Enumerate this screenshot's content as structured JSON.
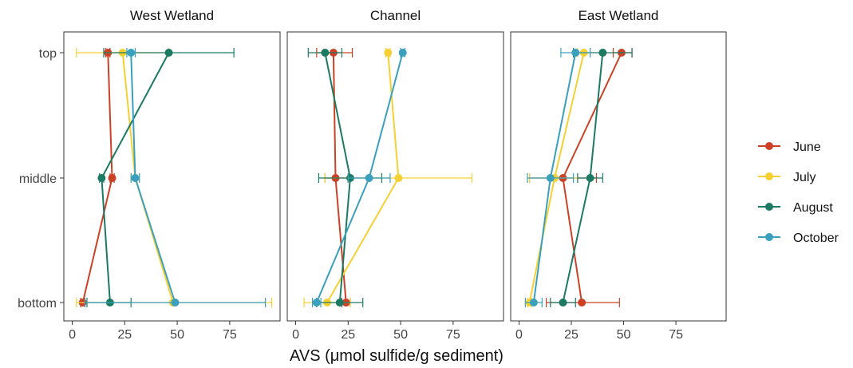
{
  "chart_data": {
    "type": "line",
    "xlabel": "AVS (μmol sulfide/g sediment)",
    "y_categories": [
      "top",
      "middle",
      "bottom"
    ],
    "x_ticks": [
      0,
      25,
      50,
      75
    ],
    "xlim": [
      -4,
      99
    ],
    "legend_position": "right",
    "series": [
      {
        "name": "June",
        "color": "#cc4125"
      },
      {
        "name": "July",
        "color": "#f5d033"
      },
      {
        "name": "August",
        "color": "#1c7a63"
      },
      {
        "name": "October",
        "color": "#3aa0bd"
      }
    ],
    "panels": [
      {
        "title": "West Wetland",
        "data": {
          "June": [
            {
              "depth": "top",
              "x": 17,
              "lo": 16,
              "hi": 18
            },
            {
              "depth": "middle",
              "x": 19,
              "lo": 18,
              "hi": 20
            },
            {
              "depth": "bottom",
              "x": 5,
              "lo": 4,
              "hi": 6
            }
          ],
          "July": [
            {
              "depth": "top",
              "x": 24,
              "lo": 2,
              "hi": 46
            },
            {
              "depth": "middle",
              "x": 30,
              "lo": 28,
              "hi": 32
            },
            {
              "depth": "bottom",
              "x": 48,
              "lo": 2,
              "hi": 95
            }
          ],
          "August": [
            {
              "depth": "top",
              "x": 46,
              "lo": 15,
              "hi": 77
            },
            {
              "depth": "middle",
              "x": 14,
              "lo": 13,
              "hi": 15
            },
            {
              "depth": "bottom",
              "x": 18,
              "lo": 7,
              "hi": 28
            }
          ],
          "October": [
            {
              "depth": "top",
              "x": 28,
              "lo": 26,
              "hi": 30
            },
            {
              "depth": "middle",
              "x": 30,
              "lo": 28,
              "hi": 32
            },
            {
              "depth": "bottom",
              "x": 49,
              "lo": 6,
              "hi": 92
            }
          ]
        }
      },
      {
        "title": "Channel",
        "data": {
          "June": [
            {
              "depth": "top",
              "x": 18,
              "lo": 10,
              "hi": 27
            },
            {
              "depth": "middle",
              "x": 19,
              "lo": 14,
              "hi": 25
            },
            {
              "depth": "bottom",
              "x": 24,
              "lo": 22,
              "hi": 26
            }
          ],
          "July": [
            {
              "depth": "top",
              "x": 44,
              "lo": 43,
              "hi": 45
            },
            {
              "depth": "middle",
              "x": 49,
              "lo": 14,
              "hi": 84
            },
            {
              "depth": "bottom",
              "x": 15,
              "lo": 4,
              "hi": 26
            }
          ],
          "August": [
            {
              "depth": "top",
              "x": 14,
              "lo": 6,
              "hi": 22
            },
            {
              "depth": "middle",
              "x": 26,
              "lo": 11,
              "hi": 41
            },
            {
              "depth": "bottom",
              "x": 21,
              "lo": 10,
              "hi": 32
            }
          ],
          "October": [
            {
              "depth": "top",
              "x": 51,
              "lo": 50,
              "hi": 52
            },
            {
              "depth": "middle",
              "x": 35,
              "lo": 25,
              "hi": 45
            },
            {
              "depth": "bottom",
              "x": 10,
              "lo": 8,
              "hi": 12
            }
          ]
        }
      },
      {
        "title": "East Wetland",
        "data": {
          "June": [
            {
              "depth": "top",
              "x": 49,
              "lo": 45,
              "hi": 54
            },
            {
              "depth": "middle",
              "x": 21,
              "lo": 5,
              "hi": 37
            },
            {
              "depth": "bottom",
              "x": 30,
              "lo": 13,
              "hi": 48
            }
          ],
          "July": [
            {
              "depth": "top",
              "x": 31,
              "lo": 28,
              "hi": 34
            },
            {
              "depth": "middle",
              "x": 17,
              "lo": 5,
              "hi": 28
            },
            {
              "depth": "bottom",
              "x": 5,
              "lo": 4,
              "hi": 6
            }
          ],
          "August": [
            {
              "depth": "top",
              "x": 40,
              "lo": 26,
              "hi": 54
            },
            {
              "depth": "middle",
              "x": 34,
              "lo": 28,
              "hi": 40
            },
            {
              "depth": "bottom",
              "x": 21,
              "lo": 15,
              "hi": 27
            }
          ],
          "October": [
            {
              "depth": "top",
              "x": 27,
              "lo": 20,
              "hi": 34
            },
            {
              "depth": "middle",
              "x": 15,
              "lo": 4,
              "hi": 26
            },
            {
              "depth": "bottom",
              "x": 7,
              "lo": 3,
              "hi": 11
            }
          ]
        }
      }
    ]
  }
}
